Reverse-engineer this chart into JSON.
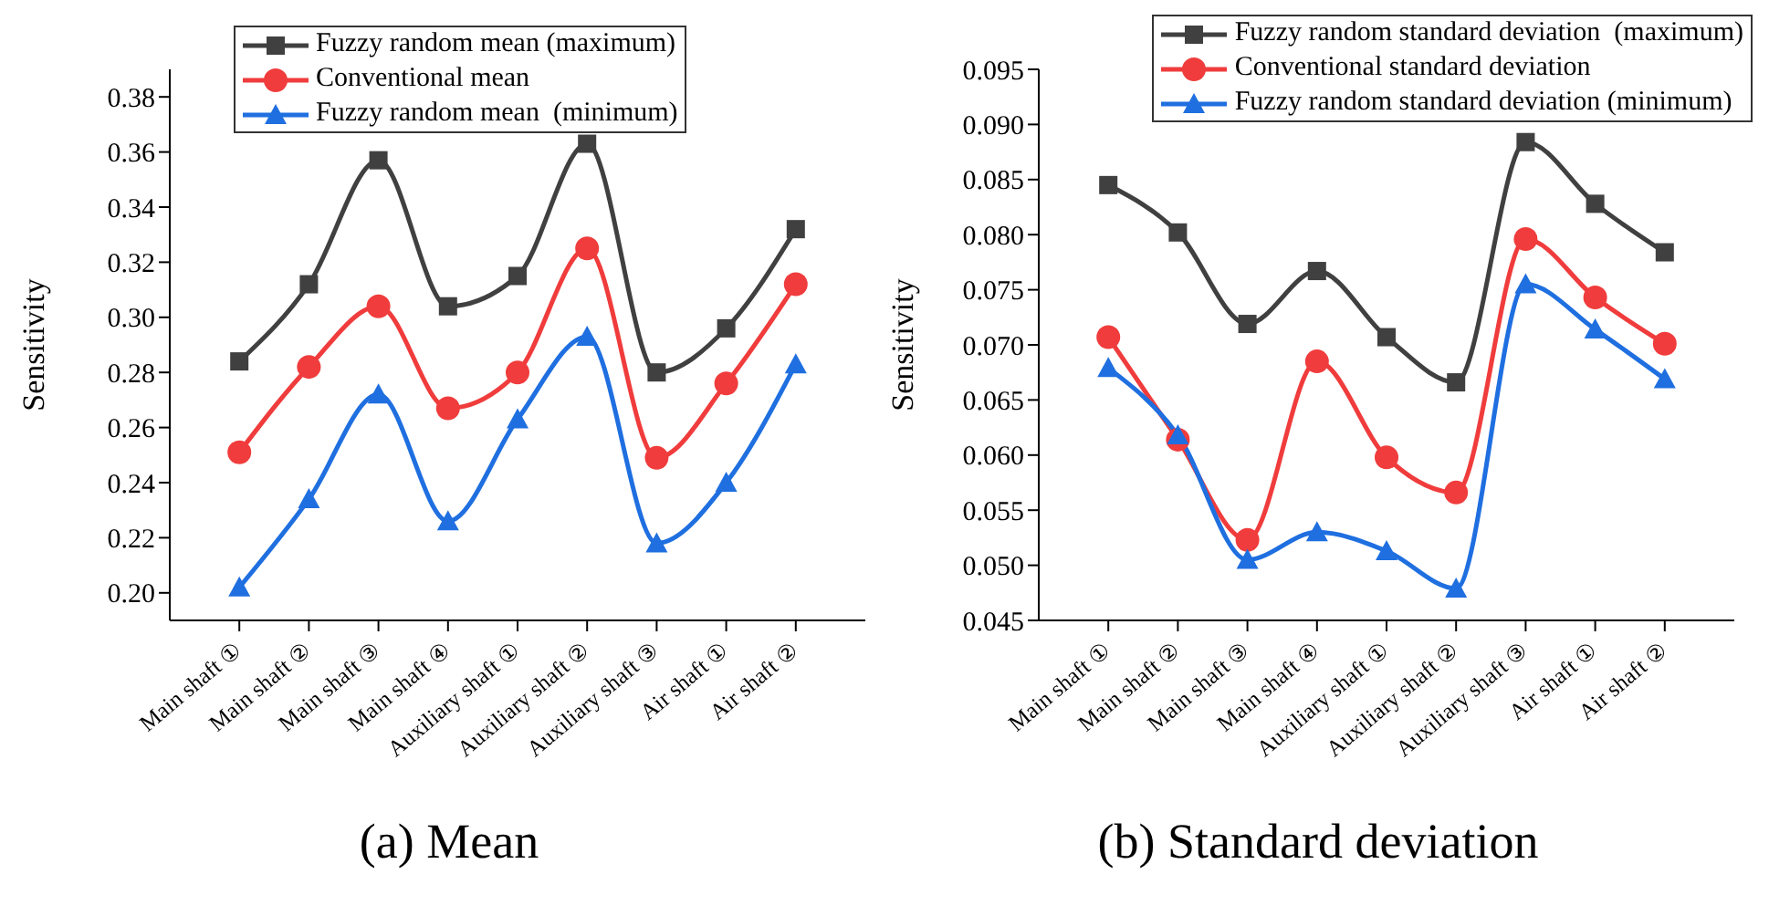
{
  "chart_data": [
    {
      "type": "line",
      "title": "(a) Mean",
      "ylabel": "Sensitivity",
      "categories": [
        "Main shaft ①",
        "Main shaft ②",
        "Main shaft ③",
        "Main shaft ④",
        "Auxiliary shaft ①",
        "Auxiliary shaft ②",
        "Auxiliary shaft ③",
        "Air shaft ①",
        "Air shaft ②"
      ],
      "series": [
        {
          "name": "Fuzzy random mean (maximum)",
          "color": "#404040",
          "marker": "square",
          "values": [
            0.284,
            0.312,
            0.357,
            0.304,
            0.315,
            0.363,
            0.28,
            0.296,
            0.332
          ]
        },
        {
          "name": "Conventional mean",
          "color": "#f03c3c",
          "marker": "circle",
          "values": [
            0.251,
            0.282,
            0.304,
            0.267,
            0.28,
            0.325,
            0.249,
            0.276,
            0.312
          ]
        },
        {
          "name": "Fuzzy random mean  (minimum)",
          "color": "#1f6fe0",
          "marker": "triangle",
          "values": [
            0.202,
            0.234,
            0.272,
            0.226,
            0.263,
            0.293,
            0.218,
            0.24,
            0.283
          ]
        }
      ],
      "ylim": [
        0.19,
        0.39
      ],
      "yticks": [
        {
          "value": 0.2,
          "label": "0.20"
        },
        0.22,
        0.24,
        0.26,
        0.28,
        {
          "value": 0.3,
          "label": "0.30"
        },
        0.32,
        0.34,
        0.36,
        0.38
      ],
      "grid": false,
      "legend": "top",
      "line_style": "solid"
    },
    {
      "type": "line",
      "title": "(b) Standard deviation",
      "ylabel": "Sensitivity",
      "categories": [
        "Main shaft ①",
        "Main shaft ②",
        "Main shaft ③",
        "Main shaft ④",
        "Auxiliary shaft ①",
        "Auxiliary shaft ②",
        "Auxiliary shaft ③",
        "Air shaft ①",
        "Air shaft ②"
      ],
      "series": [
        {
          "name": "Fuzzy random standard deviation  (maximum)",
          "color": "#404040",
          "marker": "square",
          "values": [
            0.0845,
            0.0802,
            0.0719,
            0.0767,
            0.0707,
            0.0666,
            0.0884,
            0.0828,
            0.0784
          ]
        },
        {
          "name": "Conventional standard deviation",
          "color": "#f03c3c",
          "marker": "circle",
          "values": [
            0.0707,
            0.0614,
            0.0523,
            0.0685,
            0.0598,
            0.0566,
            0.0796,
            0.0743,
            0.0701
          ]
        },
        {
          "name": "Fuzzy random standard deviation (minimum)",
          "color": "#1f6fe0",
          "marker": "triangle",
          "values": [
            0.0679,
            0.0618,
            0.0505,
            0.053,
            0.0513,
            0.0479,
            0.0755,
            0.0714,
            0.0669
          ]
        }
      ],
      "ylim": [
        0.045,
        0.095
      ],
      "yticks": [
        0.045,
        {
          "value": 0.05,
          "label": "0.050"
        },
        0.055,
        {
          "value": 0.06,
          "label": "0.060"
        },
        0.065,
        {
          "value": 0.07,
          "label": "0.070"
        },
        0.075,
        {
          "value": 0.08,
          "label": "0.080"
        },
        0.085,
        {
          "value": 0.09,
          "label": "0.090"
        },
        0.095
      ],
      "grid": false,
      "legend": "top right",
      "line_style": "solid"
    }
  ]
}
